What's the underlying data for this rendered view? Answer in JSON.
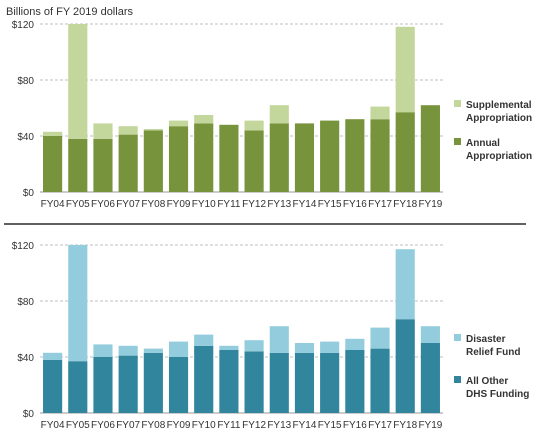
{
  "chart_data": [
    {
      "type": "bar",
      "stacked": true,
      "ylabel": "Billions of FY 2019 dollars",
      "ylim": [
        0,
        120
      ],
      "yticks": [
        "$0",
        "$40",
        "$80",
        "$120"
      ],
      "grid": true,
      "legend_position": "right",
      "categories": [
        "FY04",
        "FY05",
        "FY06",
        "FY07",
        "FY08",
        "FY09",
        "FY10",
        "FY11",
        "FY12",
        "FY13",
        "FY14",
        "FY15",
        "FY16",
        "FY17",
        "FY18",
        "FY19"
      ],
      "series": [
        {
          "name": "Annual Appropriation",
          "legend_lines": [
            "Annual",
            "Appropriation"
          ],
          "color": "#77933c",
          "values": [
            40,
            38,
            38,
            41,
            44,
            47,
            49,
            48,
            44,
            49,
            49,
            51,
            52,
            52,
            57,
            62
          ]
        },
        {
          "name": "Supplemental Appropriation",
          "legend_lines": [
            "Supplemental",
            "Appropriation"
          ],
          "color": "#c3d69b",
          "values": [
            3,
            82,
            11,
            6,
            1,
            4,
            6,
            0,
            7,
            13,
            0,
            0,
            0,
            9,
            61,
            0
          ]
        }
      ]
    },
    {
      "type": "bar",
      "stacked": true,
      "ylim": [
        0,
        120
      ],
      "yticks": [
        "$0",
        "$40",
        "$80",
        "$120"
      ],
      "grid": true,
      "legend_position": "right",
      "categories": [
        "FY04",
        "FY05",
        "FY06",
        "FY07",
        "FY08",
        "FY09",
        "FY10",
        "FY11",
        "FY12",
        "FY13",
        "FY14",
        "FY15",
        "FY16",
        "FY17",
        "FY18",
        "FY19"
      ],
      "series": [
        {
          "name": "All Other DHS Funding",
          "legend_lines": [
            "All Other",
            "DHS Funding"
          ],
          "color": "#31859c",
          "values": [
            38,
            37,
            40,
            41,
            43,
            40,
            48,
            45,
            44,
            43,
            43,
            43,
            45,
            46,
            67,
            50
          ]
        },
        {
          "name": "Disaster Relief Fund",
          "legend_lines": [
            "Disaster",
            "Relief Fund"
          ],
          "color": "#93cddd",
          "values": [
            5,
            83,
            9,
            7,
            3,
            11,
            8,
            3,
            8,
            19,
            7,
            8,
            8,
            15,
            50,
            12
          ]
        }
      ]
    }
  ]
}
